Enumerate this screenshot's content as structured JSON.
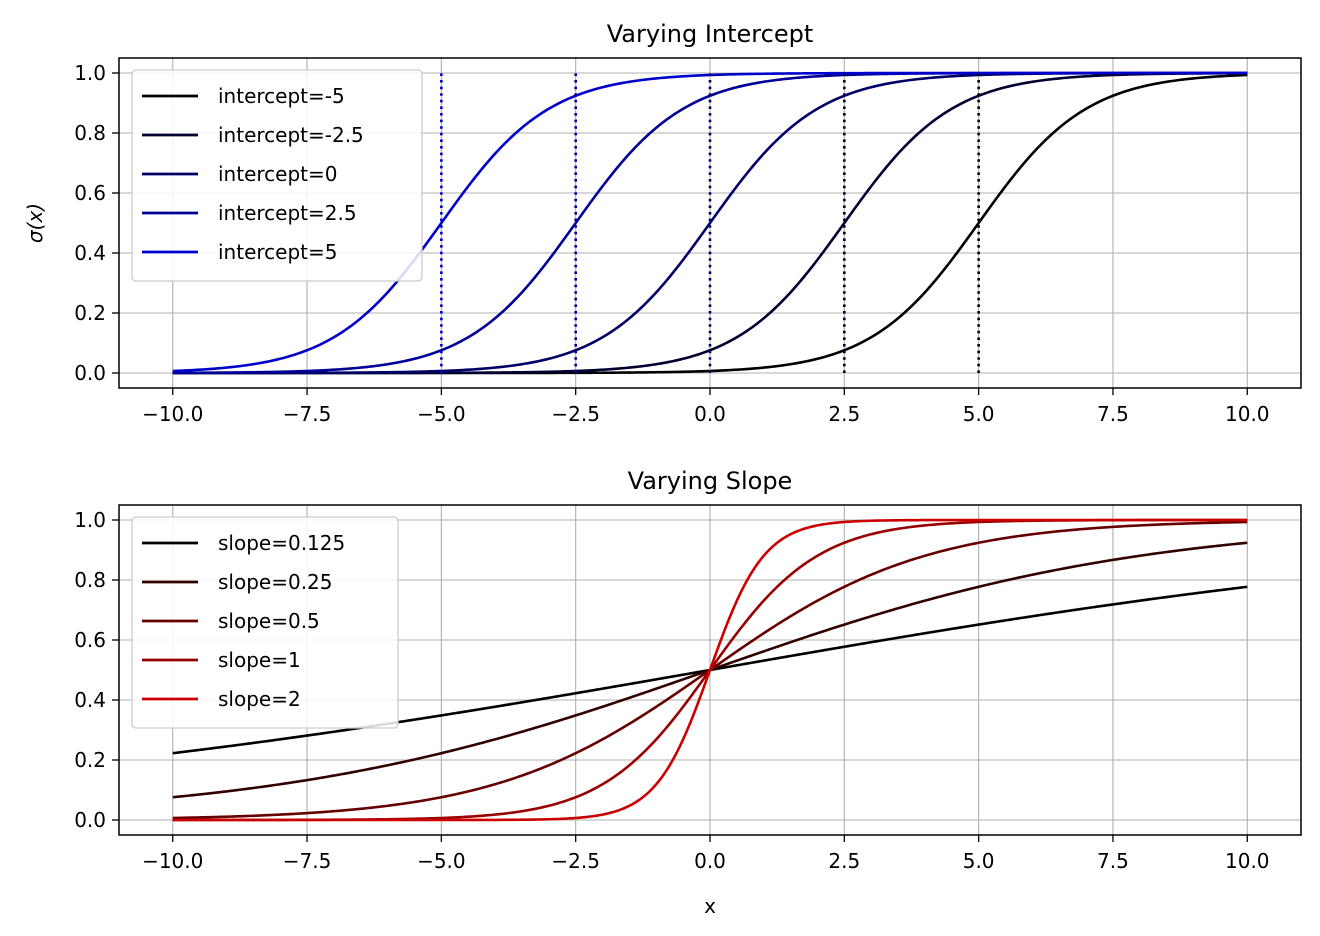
{
  "chart_data": [
    {
      "type": "line",
      "title": "Varying Intercept",
      "xlabel": "",
      "ylabel": "σ(x)",
      "xlim": [
        -11,
        11
      ],
      "ylim": [
        -0.05,
        1.05
      ],
      "xticks": [
        -10,
        -7.5,
        -5,
        -2.5,
        0,
        2.5,
        5,
        7.5,
        10
      ],
      "xtick_labels": [
        "−10.0",
        "−7.5",
        "−5.0",
        "−2.5",
        "0.0",
        "2.5",
        "5.0",
        "7.5",
        "10.0"
      ],
      "yticks": [
        0,
        0.2,
        0.4,
        0.6,
        0.8,
        1.0
      ],
      "ytick_labels": [
        "0.0",
        "0.2",
        "0.4",
        "0.6",
        "0.8",
        "1.0"
      ],
      "grid": true,
      "legend": "upper-left",
      "x_range": [
        -10,
        10
      ],
      "series": [
        {
          "name": "intercept=-5",
          "slope": 1,
          "intercept": -5,
          "color": "#000000",
          "vline_x": 5
        },
        {
          "name": "intercept=-2.5",
          "slope": 1,
          "intercept": -2.5,
          "color": "#000033",
          "vline_x": 2.5
        },
        {
          "name": "intercept=0",
          "slope": 1,
          "intercept": 0,
          "color": "#000066",
          "vline_x": 0
        },
        {
          "name": "intercept=2.5",
          "slope": 1,
          "intercept": 2.5,
          "color": "#000099",
          "vline_x": -2.5
        },
        {
          "name": "intercept=5",
          "slope": 1,
          "intercept": 5,
          "color": "#0000cc",
          "vline_x": -5
        }
      ]
    },
    {
      "type": "line",
      "title": "Varying Slope",
      "xlabel": "x",
      "ylabel": "",
      "xlim": [
        -11,
        11
      ],
      "ylim": [
        -0.05,
        1.05
      ],
      "xticks": [
        -10,
        -7.5,
        -5,
        -2.5,
        0,
        2.5,
        5,
        7.5,
        10
      ],
      "xtick_labels": [
        "−10.0",
        "−7.5",
        "−5.0",
        "−2.5",
        "0.0",
        "2.5",
        "5.0",
        "7.5",
        "10.0"
      ],
      "yticks": [
        0,
        0.2,
        0.4,
        0.6,
        0.8,
        1.0
      ],
      "ytick_labels": [
        "0.0",
        "0.2",
        "0.4",
        "0.6",
        "0.8",
        "1.0"
      ],
      "grid": true,
      "legend": "upper-left",
      "x_range": [
        -10,
        10
      ],
      "series": [
        {
          "name": "slope=0.125",
          "slope": 0.125,
          "intercept": 0,
          "color": "#000000"
        },
        {
          "name": "slope=0.25",
          "slope": 0.25,
          "intercept": 0,
          "color": "#330000"
        },
        {
          "name": "slope=0.5",
          "slope": 0.5,
          "intercept": 0,
          "color": "#660000"
        },
        {
          "name": "slope=1",
          "slope": 1,
          "intercept": 0,
          "color": "#990000"
        },
        {
          "name": "slope=2",
          "slope": 2,
          "intercept": 0,
          "color": "#cc0000"
        }
      ]
    }
  ]
}
